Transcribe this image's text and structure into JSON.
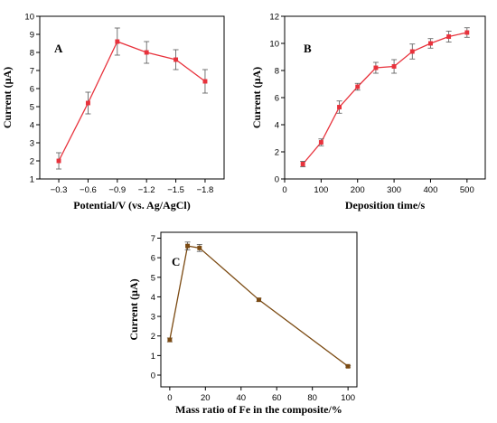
{
  "chart_data": [
    {
      "type": "line",
      "panel_label": "A",
      "xlabel": "Potential/V (vs. Ag/AgCl)",
      "ylabel": "Current (μA)",
      "categories": [
        "−0.3",
        "−0.6",
        "−0.9",
        "−1.2",
        "−1.5",
        "−1.8"
      ],
      "x": [
        -0.3,
        -0.6,
        -0.9,
        -1.2,
        -1.5,
        -1.8
      ],
      "values": [
        2.0,
        5.2,
        8.6,
        8.0,
        7.6,
        6.4
      ],
      "errors": [
        0.45,
        0.6,
        0.75,
        0.6,
        0.55,
        0.65
      ],
      "ylim": [
        1,
        10
      ],
      "yticks": [
        1,
        2,
        3,
        4,
        5,
        6,
        7,
        8,
        9,
        10
      ],
      "color": "#e8323c",
      "grid": false
    },
    {
      "type": "line",
      "panel_label": "B",
      "xlabel": "Deposition time/s",
      "ylabel": "Current (μA)",
      "x": [
        50,
        100,
        150,
        200,
        250,
        300,
        350,
        400,
        450,
        500
      ],
      "values": [
        1.1,
        2.7,
        5.3,
        6.8,
        8.2,
        8.3,
        9.4,
        10.0,
        10.5,
        10.8
      ],
      "errors": [
        0.2,
        0.25,
        0.45,
        0.25,
        0.4,
        0.5,
        0.55,
        0.35,
        0.4,
        0.35
      ],
      "xlim": [
        0,
        550
      ],
      "xticks": [
        0,
        100,
        200,
        300,
        400,
        500
      ],
      "ylim": [
        0,
        12
      ],
      "yticks": [
        0,
        2,
        4,
        6,
        8,
        10,
        12
      ],
      "color": "#e8323c",
      "grid": false
    },
    {
      "type": "line",
      "panel_label": "C",
      "xlabel": "Mass ratio of Fe in the composite/%",
      "ylabel": "Current (μA)",
      "x": [
        0,
        10,
        16.7,
        50,
        100
      ],
      "values": [
        1.8,
        6.6,
        6.5,
        3.85,
        0.45
      ],
      "errors": [
        0.1,
        0.2,
        0.18,
        0.08,
        0.04
      ],
      "xlim": [
        -5,
        105
      ],
      "xticks": [
        0,
        20,
        40,
        60,
        80,
        100
      ],
      "ylim": [
        -0.6,
        7.3
      ],
      "yticks": [
        0,
        1,
        2,
        3,
        4,
        5,
        6,
        7
      ],
      "color": "#7b4a12",
      "grid": false
    }
  ]
}
